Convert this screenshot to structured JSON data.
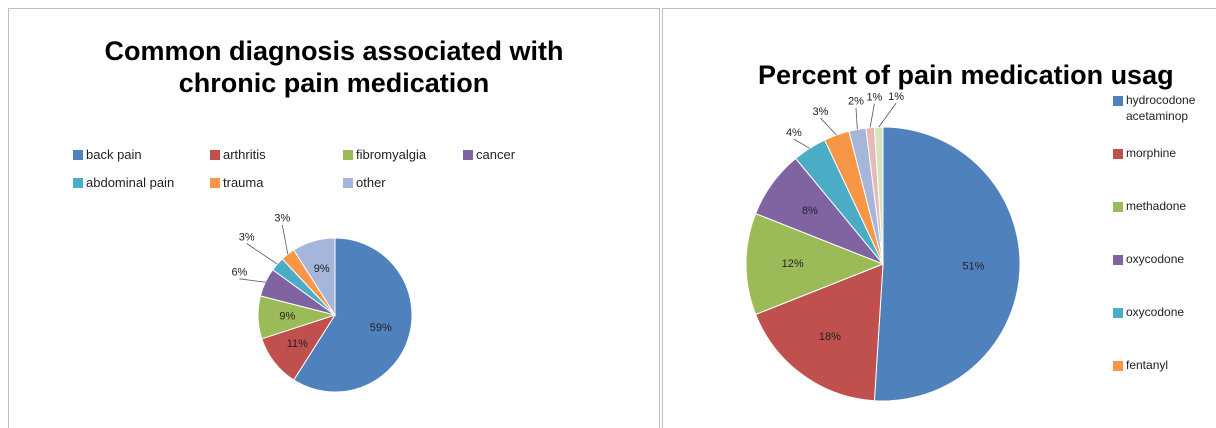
{
  "chart_data": [
    {
      "type": "pie",
      "title": [
        "Common diagnosis associated with",
        "chronic pain medication"
      ],
      "legend_placement": "top",
      "slices": [
        {
          "label": "back pain",
          "value": 59,
          "display": "59%",
          "color": "#4f81bd"
        },
        {
          "label": "arthritis",
          "value": 11,
          "display": "11%",
          "color": "#c0504d"
        },
        {
          "label": "fibromyalgia",
          "value": 9,
          "display": "9%",
          "color": "#9bbb59"
        },
        {
          "label": "cancer",
          "value": 6,
          "display": "6%",
          "color": "#8064a2"
        },
        {
          "label": "abdominal pain",
          "value": 3,
          "display": "3%",
          "color": "#4bacc6"
        },
        {
          "label": "trauma",
          "value": 3,
          "display": "3%",
          "color": "#f79646"
        },
        {
          "label": "other",
          "value": 9,
          "display": "9%",
          "color": "#a5b6da"
        }
      ]
    },
    {
      "type": "pie",
      "title": "Percent of pain medication usag",
      "legend_placement": "right",
      "slices": [
        {
          "label": "hydrocodone\nacetaminop",
          "value": 51,
          "display": "51%",
          "color": "#4f81bd"
        },
        {
          "label": "morphine",
          "value": 18,
          "display": "18%",
          "color": "#c0504d"
        },
        {
          "label": "methadone",
          "value": 12,
          "display": "12%",
          "color": "#9bbb59"
        },
        {
          "label": "oxycodone",
          "value": 8,
          "display": "8%",
          "color": "#8064a2"
        },
        {
          "label": "oxycodone",
          "value": 4,
          "display": "4%",
          "color": "#4bacc6"
        },
        {
          "label": "fentanyl",
          "value": 3,
          "display": "3%",
          "color": "#f79646"
        },
        {
          "label": "",
          "value": 2,
          "display": "2%",
          "color": "#a5b6da"
        },
        {
          "label": "",
          "value": 1,
          "display": "1%",
          "color": "#e6b9b8"
        },
        {
          "label": "",
          "value": 1,
          "display": "1%",
          "color": "#d7e4bd"
        }
      ]
    }
  ]
}
